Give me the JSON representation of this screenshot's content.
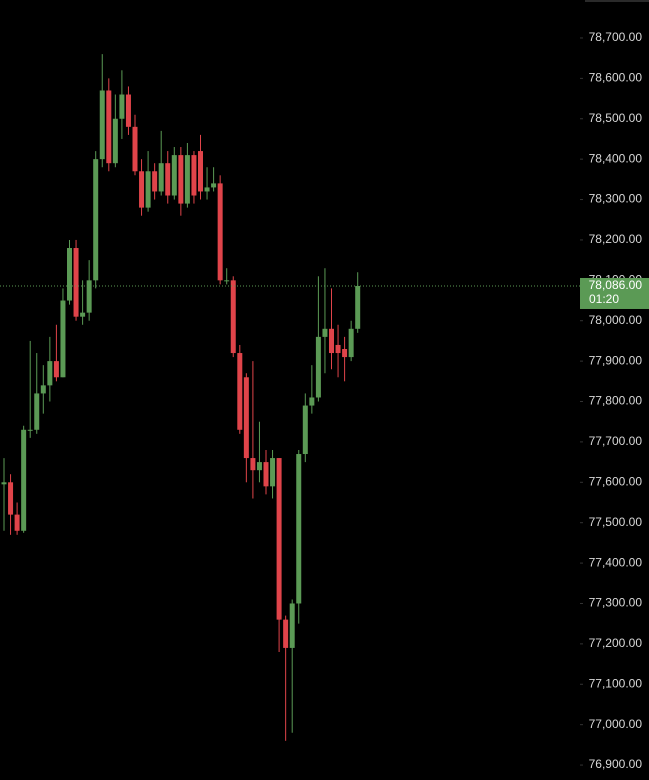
{
  "chart_data": {
    "type": "candlestick",
    "ylim": [
      76863,
      78794
    ],
    "yticks": [
      {
        "value": 76900,
        "label": "76,900.00"
      },
      {
        "value": 77000,
        "label": "77,000.00"
      },
      {
        "value": 77100,
        "label": "77,100.00"
      },
      {
        "value": 77200,
        "label": "77,200.00"
      },
      {
        "value": 77300,
        "label": "77,300.00"
      },
      {
        "value": 77400,
        "label": "77,400.00"
      },
      {
        "value": 77500,
        "label": "77,500.00"
      },
      {
        "value": 77600,
        "label": "77,600.00"
      },
      {
        "value": 77700,
        "label": "77,700.00"
      },
      {
        "value": 77800,
        "label": "77,800.00"
      },
      {
        "value": 77900,
        "label": "77,900.00"
      },
      {
        "value": 78000,
        "label": "78,000.00"
      },
      {
        "value": 78100,
        "label": "78,100.00"
      },
      {
        "value": 78200,
        "label": "78,200.00"
      },
      {
        "value": 78300,
        "label": "78,300.00"
      },
      {
        "value": 78400,
        "label": "78,400.00"
      },
      {
        "value": 78500,
        "label": "78,500.00"
      },
      {
        "value": 78600,
        "label": "78,600.00"
      },
      {
        "value": 78700,
        "label": "78,700.00"
      }
    ],
    "up_color": "#5b9a55",
    "down_color": "#e0444a",
    "open": [
      77595,
      77600,
      77520,
      77480,
      77730,
      77730,
      77820,
      77840,
      77900,
      77860,
      78050,
      78180,
      78010,
      78020,
      78100,
      78400,
      78570,
      78390,
      78500,
      78560,
      78480,
      78370,
      78280,
      78370,
      78320,
      78390,
      78310,
      78410,
      78290,
      78410,
      78420,
      78320,
      78330,
      78340,
      78100,
      78100,
      77920,
      77860,
      77660,
      77630,
      77650,
      77590,
      77660,
      77260,
      77190,
      77300,
      77670,
      77790,
      77810,
      77960,
      77980,
      77940,
      77930,
      77910,
      77980
    ],
    "high": [
      77660,
      77620,
      77550,
      77740,
      77950,
      77920,
      77890,
      77960,
      77990,
      78080,
      78200,
      78200,
      78100,
      78150,
      78420,
      78660,
      78600,
      78560,
      78620,
      78580,
      78510,
      78400,
      78420,
      78390,
      78470,
      78420,
      78430,
      78430,
      78440,
      78420,
      78460,
      78380,
      78380,
      78360,
      78130,
      78110,
      77940,
      77870,
      77900,
      77750,
      77680,
      77680,
      77660,
      77270,
      77310,
      77680,
      77820,
      77890,
      78110,
      78130,
      78080,
      77990,
      77960,
      78000,
      78120
    ],
    "low": [
      77480,
      77470,
      77470,
      77475,
      77710,
      77720,
      77770,
      77800,
      77850,
      77860,
      78040,
      78000,
      77990,
      78000,
      78080,
      78380,
      78370,
      78380,
      78450,
      78460,
      78360,
      78260,
      78270,
      78300,
      78310,
      78290,
      78300,
      78260,
      78280,
      78290,
      78300,
      78300,
      78320,
      78090,
      78090,
      77910,
      77720,
      77600,
      77560,
      77600,
      77570,
      77560,
      77180,
      76960,
      76980,
      77250,
      77650,
      77770,
      77800,
      77870,
      77880,
      77860,
      77850,
      77900,
      77970
    ],
    "close": [
      77600,
      77520,
      77480,
      77730,
      77730,
      77820,
      77840,
      77900,
      77860,
      78050,
      78180,
      78010,
      78020,
      78100,
      78400,
      78570,
      78390,
      78500,
      78560,
      78480,
      78370,
      78280,
      78370,
      78320,
      78390,
      78310,
      78410,
      78290,
      78410,
      78310,
      78320,
      78330,
      78340,
      78100,
      78100,
      77920,
      77730,
      77660,
      77630,
      77650,
      77590,
      77660,
      77260,
      77190,
      77300,
      77670,
      77790,
      77810,
      77960,
      77980,
      77920,
      77920,
      77910,
      77980,
      78086
    ],
    "last_price": {
      "value": 78086,
      "label": "78,086.00"
    },
    "countdown": "01:20"
  }
}
